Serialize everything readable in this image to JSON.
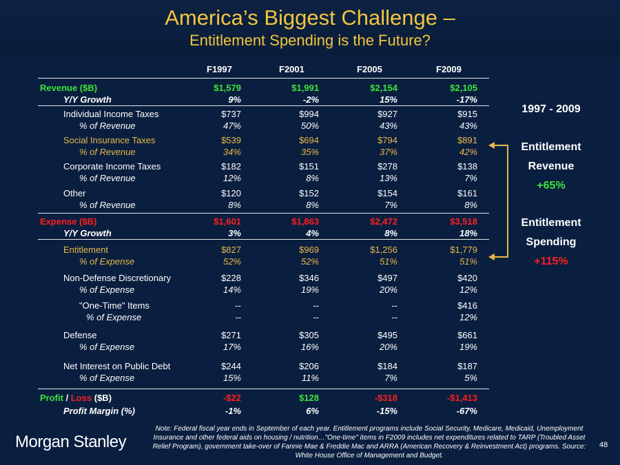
{
  "title": {
    "line1": "America’s Biggest Challenge –",
    "line2": "Entitlement Spending is the Future?"
  },
  "years": [
    "F1997",
    "F2001",
    "F2005",
    "F2009"
  ],
  "rows": [
    {
      "label": "Revenue ($B)",
      "values": [
        "$1,579",
        "$1,991",
        "$2,154",
        "$2,105"
      ]
    },
    {
      "label": "Y/Y Growth",
      "values": [
        "9%",
        "-2%",
        "15%",
        "-17%"
      ]
    },
    {
      "label": "Individual Income Taxes",
      "values": [
        "$737",
        "$994",
        "$927",
        "$915"
      ]
    },
    {
      "label": "% of Revenue",
      "values": [
        "47%",
        "50%",
        "43%",
        "43%"
      ]
    },
    {
      "label": "Social Insurance Taxes",
      "values": [
        "$539",
        "$694",
        "$794",
        "$891"
      ]
    },
    {
      "label": "% of Revenue",
      "values": [
        "34%",
        "35%",
        "37%",
        "42%"
      ]
    },
    {
      "label": "Corporate Income Taxes",
      "values": [
        "$182",
        "$151",
        "$278",
        "$138"
      ]
    },
    {
      "label": "% of Revenue",
      "values": [
        "12%",
        "8%",
        "13%",
        "7%"
      ]
    },
    {
      "label": "Other",
      "values": [
        "$120",
        "$152",
        "$154",
        "$161"
      ]
    },
    {
      "label": "% of Revenue",
      "values": [
        "8%",
        "8%",
        "7%",
        "8%"
      ]
    },
    {
      "label": "Expense ($B)",
      "values": [
        "$1,601",
        "$1,863",
        "$2,472",
        "$3,518"
      ]
    },
    {
      "label": "Y/Y Growth",
      "values": [
        "3%",
        "4%",
        "8%",
        "18%"
      ]
    },
    {
      "label": "Entitlement",
      "values": [
        "$827",
        "$969",
        "$1,256",
        "$1,779"
      ]
    },
    {
      "label": "% of Expense",
      "values": [
        "52%",
        "52%",
        "51%",
        "51%"
      ]
    },
    {
      "label": "Non-Defense Discretionary",
      "values": [
        "$228",
        "$346",
        "$497",
        "$420"
      ]
    },
    {
      "label": "% of Expense",
      "values": [
        "14%",
        "19%",
        "20%",
        "12%"
      ]
    },
    {
      "label": "\"One-Time\" Items",
      "values": [
        "--",
        "--",
        "--",
        "$416"
      ]
    },
    {
      "label": "% of Expense",
      "values": [
        "--",
        "--",
        "--",
        "12%"
      ]
    },
    {
      "label": "Defense",
      "values": [
        "$271",
        "$305",
        "$495",
        "$661"
      ]
    },
    {
      "label": "% of Expense",
      "values": [
        "17%",
        "16%",
        "20%",
        "19%"
      ]
    },
    {
      "label": "Net Interest on Public Debt",
      "values": [
        "$244",
        "$206",
        "$184",
        "$187"
      ]
    },
    {
      "label": "% of Expense",
      "values": [
        "15%",
        "11%",
        "7%",
        "5%"
      ]
    },
    {
      "label": "",
      "values": [
        "-$22",
        "$128",
        "-$318",
        "-$1,413"
      ]
    },
    {
      "label": "Profit Margin (%)",
      "values": [
        "-1%",
        "6%",
        "-15%",
        "-67%"
      ]
    }
  ],
  "profit_label": {
    "profit": "Profit",
    "slash": " / ",
    "loss": "Loss",
    "suffix": " ($B)"
  },
  "side": {
    "period": "1997 - 2009",
    "revenue_l1": "Entitlement",
    "revenue_l2": "Revenue",
    "revenue_change": "+65%",
    "spending_l1": "Entitlement",
    "spending_l2": "Spending",
    "spending_change": "+115%"
  },
  "footnote": "Note: Federal fiscal year ends in September of each year. Entitlement programs include Social Security, Medicare, Medicaid, Unemployment Insurance and other federal aids on housing / nutrition…\"One-time\" items in F2009 includes net expenditures related to TARP (Troubled Asset Relief Program), government take-over of Fannie Mae & Freddie Mac and ARRA (American Recovery & Reinvestment Act) programs. Source: White House Office of Management and Budget.",
  "logo": "Morgan Stanley",
  "page_number": "48",
  "colors": {
    "background": "#0a1f3f",
    "title": "#f2c53d",
    "revenue": "#3ee23a",
    "expense": "#ff1f1f",
    "entitlement": "#e8b84a"
  }
}
